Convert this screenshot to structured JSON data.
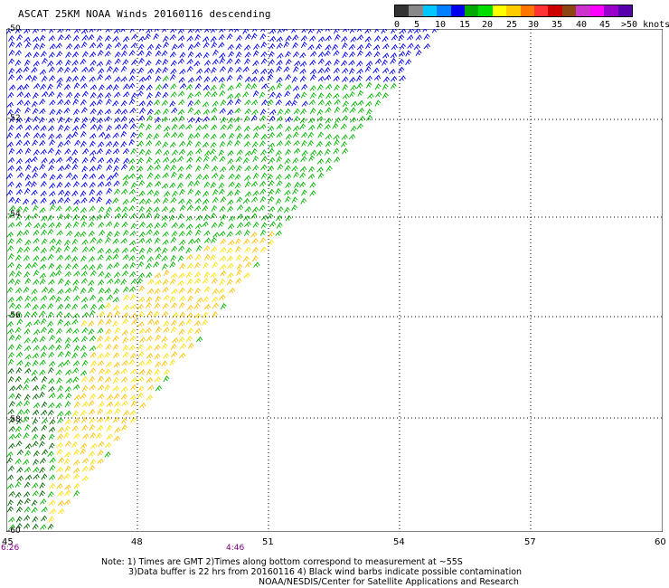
{
  "title": "ASCAT 25KM NOAA Winds 20160116 descending",
  "legend": {
    "colors": [
      "#333333",
      "#888888",
      "#00c8ff",
      "#0080ff",
      "#0000ee",
      "#00aa00",
      "#00dd00",
      "#ffff00",
      "#ffcc00",
      "#ff7700",
      "#ff3333",
      "#cc0000",
      "#8b4513",
      "#cc33cc",
      "#ff00ff",
      "#9900cc",
      "#5500aa"
    ],
    "labels": [
      "0",
      "5",
      "10",
      "15",
      "20",
      "25",
      "30",
      "35",
      "40",
      "45",
      ">50 knots"
    ]
  },
  "map": {
    "lat_labels": [
      "-50",
      "-52",
      "-54",
      "-56",
      "-58",
      "-60"
    ],
    "lon_labels": [
      "45",
      "48",
      "51",
      "54",
      "57",
      "60"
    ],
    "time_labels": [
      "6:26",
      "4:46"
    ]
  },
  "barb_colors": {
    "blue": "#0000ee",
    "green": "#00b400",
    "dark_green": "#006600",
    "yellow": "#ffe000",
    "gold": "#ffc000"
  },
  "notes": [
    "Note: 1) Times are GMT 2)Times along bottom correspond to measurement at ~55S",
    "3)Data buffer is 22 hrs from 20160116 4) Black wind barbs indicate possible contamination",
    "NOAA/NESDIS/Center for Satellite Applications and Research"
  ]
}
